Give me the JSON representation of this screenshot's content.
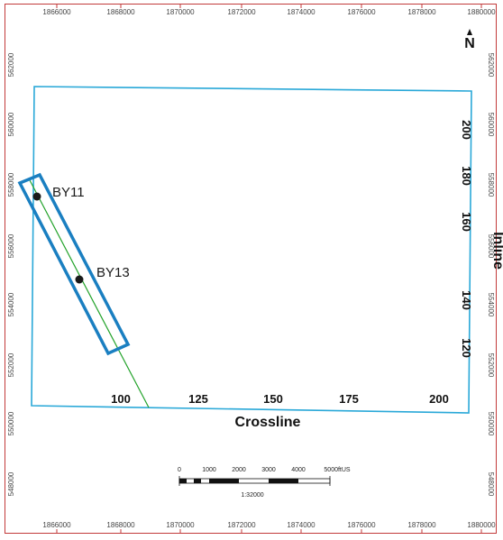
{
  "map": {
    "top_ticks": [
      "1866000",
      "1868000",
      "1870000",
      "1872000",
      "1874000",
      "1876000",
      "1878000",
      "1880000"
    ],
    "bottom_ticks": [
      "1866000",
      "1868000",
      "1870000",
      "1872000",
      "1874000",
      "1876000",
      "1878000",
      "1880000"
    ],
    "left_ticks": [
      "562000",
      "560000",
      "558000",
      "556000",
      "554000",
      "552000",
      "550000",
      "548000"
    ],
    "right_ticks": [
      "562000",
      "560000",
      "558000",
      "556000",
      "554000",
      "552000",
      "550000",
      "548000"
    ],
    "north_arrow": {
      "icon": "north-arrow-icon",
      "label": "N"
    },
    "survey_outline_color": "#29a8d8",
    "wells": [
      {
        "name": "BY11"
      },
      {
        "name": "BY13"
      }
    ],
    "line_color": "#22a22a",
    "selection_box_color": "#1a7fc1",
    "crossline_labels": [
      "100",
      "125",
      "150",
      "175",
      "200"
    ],
    "crossline_title": "Crossline",
    "inline_labels": [
      "200",
      "180",
      "160",
      "140",
      "120"
    ],
    "inline_title": "Inline",
    "scale_bar": {
      "labels": [
        "0",
        "1000",
        "2000",
        "3000",
        "4000",
        "5000ftUS"
      ],
      "ratio": "1:32000"
    }
  }
}
